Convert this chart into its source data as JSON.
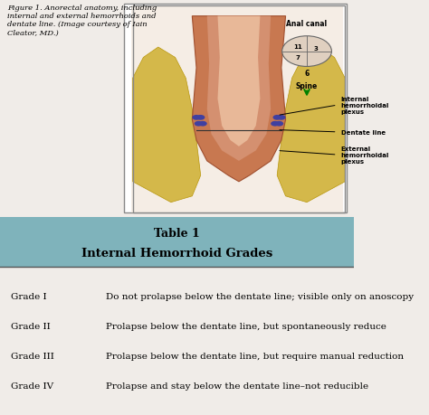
{
  "figure_caption": "Figure 1. Anorectal anatomy, including\ninternal and external hemorrhoids and\ndentate line. (Image courtesy of Iain\nCleator, MD.)",
  "table_title_line1": "Table 1",
  "table_title_line2": "Internal Hemorrhoid Grades",
  "table_bg_color": "#b8d4d8",
  "table_header_bg": "#7fb3bb",
  "grades": [
    "Grade I",
    "Grade II",
    "Grade III",
    "Grade IV"
  ],
  "descriptions": [
    "Do not prolapse below the dentate line; visible only on anoscopy",
    "Prolapse below the dentate line, but spontaneously reduce",
    "Prolapse below the dentate line, but require manual reduction",
    "Prolapse and stay below the dentate line–not reducible"
  ],
  "image_placeholder_color": "#f0e8e0",
  "top_bg_color": "#f5f0ee",
  "border_color": "#888888",
  "fig_width": 4.74,
  "fig_height": 4.6,
  "dpi": 100
}
